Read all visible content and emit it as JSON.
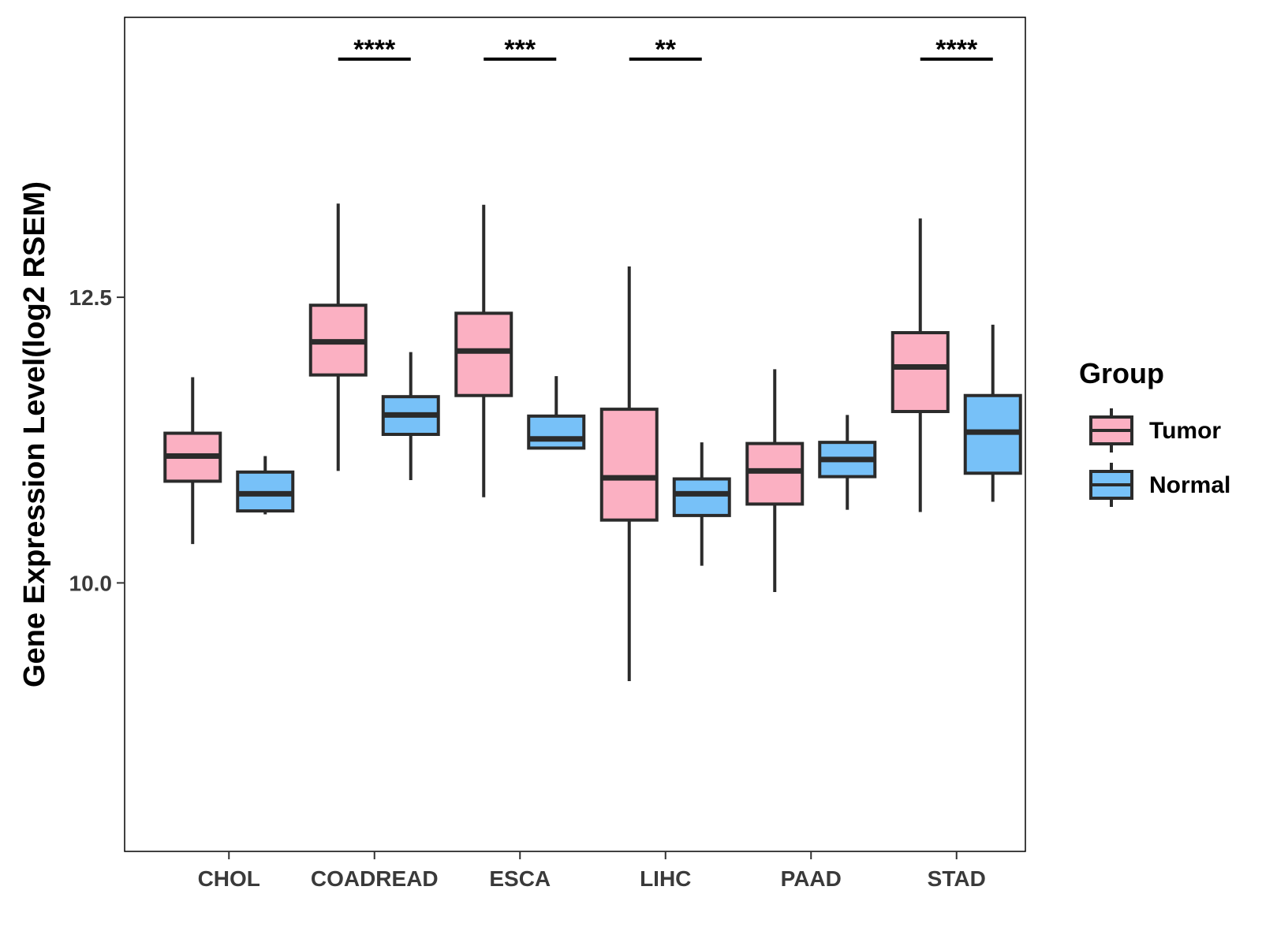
{
  "chart_data": {
    "type": "boxplot",
    "title": "",
    "xlabel": "",
    "ylabel": "Gene Expression Level(log2 RSEM)",
    "ylim": [
      7.65,
      14.95
    ],
    "yticks": [
      10.0,
      12.5
    ],
    "ytick_labels": [
      "10.0",
      "12.5"
    ],
    "categories": [
      "CHOL",
      "COADREAD",
      "ESCA",
      "LIHC",
      "PAAD",
      "STAD"
    ],
    "legend": {
      "title": "Group",
      "placement": "right",
      "entries": [
        "Tumor",
        "Normal"
      ]
    },
    "series": [
      {
        "name": "Tumor",
        "color": "#fbb0c2",
        "boxes": [
          {
            "min": 10.34,
            "q1": 10.89,
            "median": 11.11,
            "q3": 11.31,
            "max": 11.8
          },
          {
            "min": 10.98,
            "q1": 11.82,
            "median": 12.11,
            "q3": 12.43,
            "max": 13.32
          },
          {
            "min": 10.75,
            "q1": 11.64,
            "median": 12.03,
            "q3": 12.36,
            "max": 13.31
          },
          {
            "min": 9.14,
            "q1": 10.55,
            "median": 10.92,
            "q3": 11.52,
            "max": 12.77
          },
          {
            "min": 9.92,
            "q1": 10.69,
            "median": 10.98,
            "q3": 11.22,
            "max": 11.87
          },
          {
            "min": 10.62,
            "q1": 11.5,
            "median": 11.89,
            "q3": 12.19,
            "max": 13.19
          }
        ]
      },
      {
        "name": "Normal",
        "color": "#77c1f8",
        "boxes": [
          {
            "min": 10.6,
            "q1": 10.63,
            "median": 10.78,
            "q3": 10.97,
            "max": 11.11
          },
          {
            "min": 10.9,
            "q1": 11.3,
            "median": 11.47,
            "q3": 11.63,
            "max": 12.02
          },
          {
            "min": 11.17,
            "q1": 11.18,
            "median": 11.26,
            "q3": 11.46,
            "max": 11.81
          },
          {
            "min": 10.15,
            "q1": 10.59,
            "median": 10.78,
            "q3": 10.91,
            "max": 11.23
          },
          {
            "min": 10.64,
            "q1": 10.93,
            "median": 11.08,
            "q3": 11.23,
            "max": 11.47
          },
          {
            "min": 10.71,
            "q1": 10.96,
            "median": 11.32,
            "q3": 11.64,
            "max": 12.26
          }
        ]
      }
    ],
    "significance": [
      "",
      "****",
      "***",
      "**",
      "",
      "****"
    ]
  }
}
